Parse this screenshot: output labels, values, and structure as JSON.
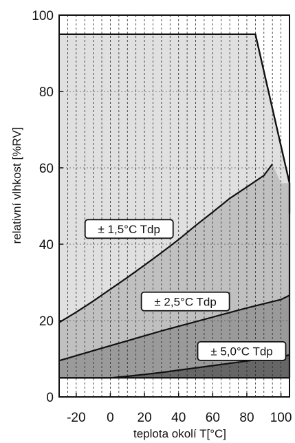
{
  "chart_data": {
    "type": "area",
    "title": "",
    "xlabel": "teplota okolí  T[°C]",
    "ylabel": "relativní vlhkost  [%RV]",
    "xlim": [
      -30,
      105
    ],
    "ylim": [
      0,
      100
    ],
    "x_ticks": [
      "-20",
      "0",
      "20",
      "40",
      "60",
      "80",
      "100"
    ],
    "y_ticks": [
      "0",
      "20",
      "40",
      "60",
      "80",
      "100"
    ],
    "grid": true,
    "regions": [
      {
        "name": "± 1,5°C Tdp",
        "color": "#e0e0e0",
        "boundary_x": [
          -30,
          85,
          105,
          105
        ],
        "boundary_y": [
          95,
          95,
          56,
          48
        ]
      },
      {
        "name": "± 2,5°C Tdp",
        "color": "#c0c0c0",
        "curve_x": [
          -30,
          -20,
          -10,
          0,
          10,
          20,
          30,
          40,
          50,
          60,
          70,
          80,
          90,
          95,
          100,
          103
        ],
        "curve_y": [
          19.5,
          22.2,
          25.1,
          28.2,
          31.3,
          34.5,
          37.8,
          41.2,
          44.9,
          48.4,
          52.0,
          55.0,
          58.0,
          61.0,
          56.0,
          56.0
        ]
      },
      {
        "name": "± 5,0°C Tdp",
        "color": "#9a9a9a",
        "curve_x": [
          -30,
          -20,
          -10,
          0,
          10,
          20,
          30,
          40,
          50,
          60,
          70,
          80,
          90,
          100,
          105
        ],
        "curve_y": [
          9.5,
          10.8,
          12.1,
          13.4,
          14.7,
          16.0,
          17.3,
          18.5,
          19.7,
          20.9,
          22.1,
          23.3,
          24.4,
          25.5,
          26.6
        ]
      },
      {
        "name": "",
        "color": "#666666",
        "curve_x": [
          -30,
          -20,
          -10,
          0,
          10,
          20,
          30,
          40,
          50,
          60,
          70,
          80,
          90,
          100,
          105
        ],
        "curve_y": [
          5,
          5,
          5,
          5,
          5.4,
          5.9,
          6.4,
          7.0,
          7.6,
          8.2,
          8.8,
          9.4,
          10.0,
          10.5,
          11.0
        ]
      }
    ],
    "annotations": [
      {
        "text": "± 1,5°C Tdp",
        "x": 11,
        "y": 44
      },
      {
        "text": "± 2,5°C Tdp",
        "x": 44,
        "y": 25
      },
      {
        "text": "± 5,0°C Tdp",
        "x": 77,
        "y": 12
      }
    ]
  }
}
